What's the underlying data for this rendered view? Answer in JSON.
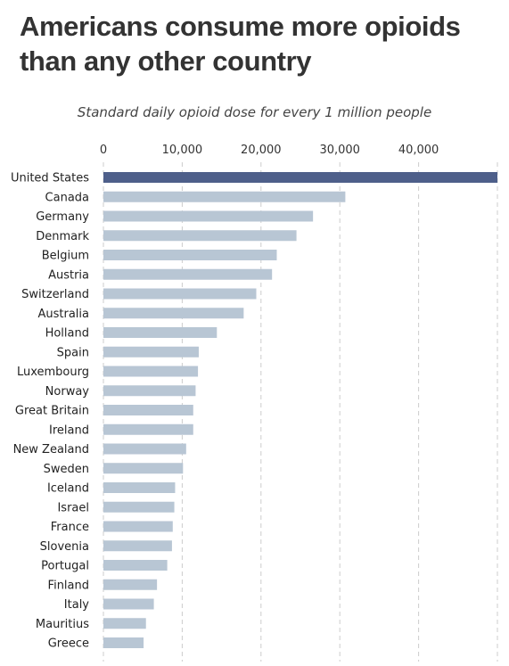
{
  "title": "Americans consume more opioids than any other country",
  "subtitle": "Standard daily opioid dose for every 1 million people",
  "colors": {
    "highlight": "#4e5f8a",
    "bar": "#b8c6d4",
    "grid": "#cccccc"
  },
  "chart_data": {
    "type": "bar",
    "orientation": "horizontal",
    "title": "Americans consume more opioids than any other country",
    "subtitle": "Standard daily opioid dose for every 1 million people",
    "xlabel": "",
    "ylabel": "",
    "xlim": [
      0,
      50000
    ],
    "x_ticks": [
      0,
      10000,
      20000,
      30000,
      40000
    ],
    "x_tick_labels": [
      "0",
      "10,000",
      "20,000",
      "30,000",
      "40,000"
    ],
    "gridlines": "vertical-dashed",
    "axis_position": "top",
    "highlight": "United States",
    "categories": [
      "United States",
      "Canada",
      "Germany",
      "Denmark",
      "Belgium",
      "Austria",
      "Switzerland",
      "Australia",
      "Holland",
      "Spain",
      "Luxembourg",
      "Norway",
      "Great Britain",
      "Ireland",
      "New Zealand",
      "Sweden",
      "Iceland",
      "Israel",
      "France",
      "Slovenia",
      "Portugal",
      "Finland",
      "Italy",
      "Mauritius",
      "Greece"
    ],
    "values": [
      50000,
      30700,
      26600,
      24500,
      22000,
      21400,
      19400,
      17800,
      14400,
      12100,
      12000,
      11700,
      11400,
      11400,
      10500,
      10100,
      9100,
      9000,
      8800,
      8700,
      8100,
      6800,
      6400,
      5400,
      5100
    ]
  }
}
